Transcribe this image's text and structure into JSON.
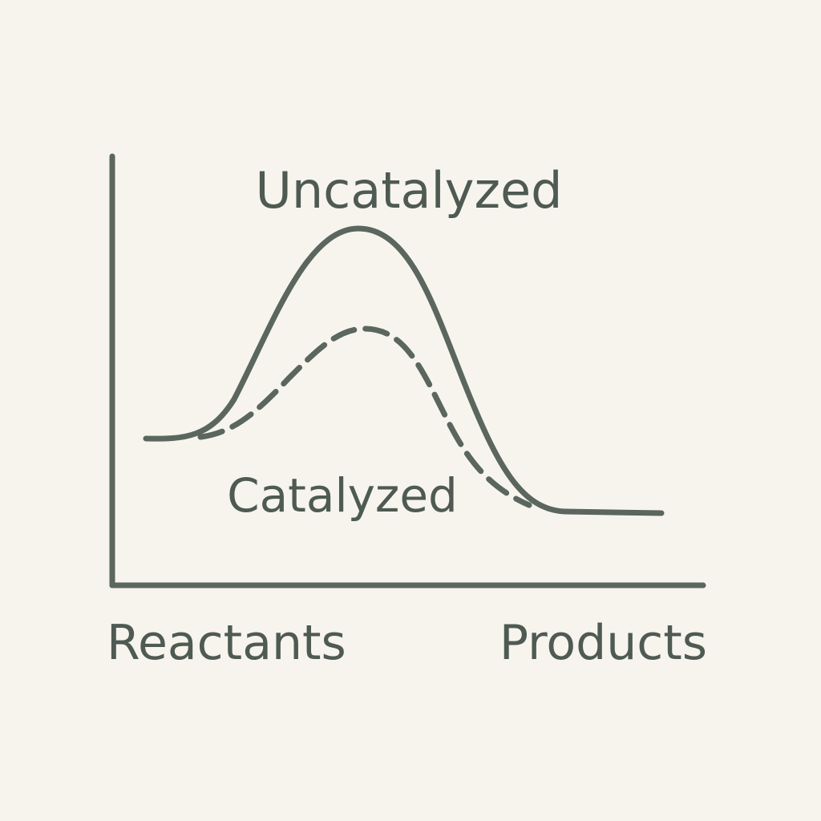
{
  "diagram": {
    "labels": {
      "uncatalyzed": "Uncatalyzed",
      "catalyzed": "Catalyzed",
      "reactants": "Reactants",
      "products": "Products"
    }
  }
}
